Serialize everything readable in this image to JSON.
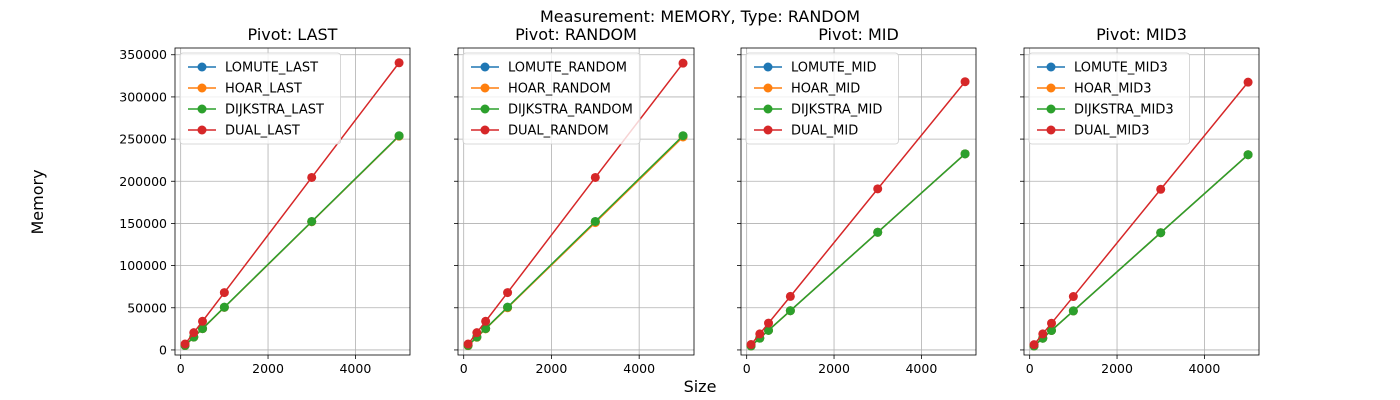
{
  "figure": {
    "suptitle": "Measurement: MEMORY, Type: RANDOM",
    "xlabel": "Size",
    "ylabel": "Memory"
  },
  "chart_data": [
    {
      "type": "line",
      "title": "Pivot: LAST",
      "xlim": [
        -130,
        5250
      ],
      "ylim": [
        -6000,
        358000
      ],
      "xticks": [
        0,
        2000,
        4000
      ],
      "yticks": [
        0,
        50000,
        100000,
        150000,
        200000,
        250000,
        300000,
        350000
      ],
      "grid": true,
      "legend": "upper-left",
      "x": [
        100,
        300,
        500,
        1000,
        3000,
        5000
      ],
      "series": [
        {
          "name": "LOMUTE_LAST",
          "color": "#1f77b4",
          "values": [
            5200,
            15200,
            25200,
            50500,
            152000,
            253500
          ]
        },
        {
          "name": "HOAR_LAST",
          "color": "#ff7f0e",
          "values": [
            5200,
            15200,
            25200,
            50500,
            152000,
            253500
          ]
        },
        {
          "name": "DIJKSTRA_LAST",
          "color": "#2ca02c",
          "values": [
            5300,
            15300,
            25300,
            50700,
            152300,
            254000
          ]
        },
        {
          "name": "DUAL_LAST",
          "color": "#d62728",
          "values": [
            7000,
            20500,
            34000,
            68000,
            204500,
            340500
          ]
        }
      ]
    },
    {
      "type": "line",
      "title": "Pivot: RANDOM",
      "xlim": [
        -130,
        5250
      ],
      "ylim": [
        -6000,
        358000
      ],
      "xticks": [
        0,
        2000,
        4000
      ],
      "yticks": [
        0,
        50000,
        100000,
        150000,
        200000,
        250000,
        300000,
        350000
      ],
      "grid": true,
      "legend": "upper-left",
      "x": [
        100,
        300,
        500,
        1000,
        3000,
        5000
      ],
      "series": [
        {
          "name": "LOMUTE_RANDOM",
          "color": "#1f77b4",
          "values": [
            5200,
            15200,
            25200,
            50500,
            152000,
            253500
          ]
        },
        {
          "name": "HOAR_RANDOM",
          "color": "#ff7f0e",
          "values": [
            5100,
            15000,
            25000,
            50000,
            151000,
            252500
          ]
        },
        {
          "name": "DIJKSTRA_RANDOM",
          "color": "#2ca02c",
          "values": [
            5300,
            15300,
            25300,
            50700,
            152300,
            254000
          ]
        },
        {
          "name": "DUAL_RANDOM",
          "color": "#d62728",
          "values": [
            7000,
            20500,
            34000,
            68000,
            204500,
            340000
          ]
        }
      ]
    },
    {
      "type": "line",
      "title": "Pivot: MID",
      "xlim": [
        -130,
        5250
      ],
      "ylim": [
        -6000,
        358000
      ],
      "xticks": [
        0,
        2000,
        4000
      ],
      "yticks": [
        0,
        50000,
        100000,
        150000,
        200000,
        250000,
        300000,
        350000
      ],
      "grid": true,
      "legend": "upper-left",
      "x": [
        100,
        300,
        500,
        1000,
        3000,
        5000
      ],
      "series": [
        {
          "name": "LOMUTE_MID",
          "color": "#1f77b4",
          "values": [
            4700,
            14000,
            23200,
            46500,
            139500,
            232500
          ]
        },
        {
          "name": "HOAR_MID",
          "color": "#ff7f0e",
          "values": [
            4700,
            14000,
            23200,
            46500,
            139500,
            232500
          ]
        },
        {
          "name": "DIJKSTRA_MID",
          "color": "#2ca02c",
          "values": [
            4700,
            14000,
            23200,
            46500,
            139500,
            232500
          ]
        },
        {
          "name": "DUAL_MID",
          "color": "#d62728",
          "values": [
            6400,
            19000,
            31800,
            63500,
            191000,
            318000
          ]
        }
      ]
    },
    {
      "type": "line",
      "title": "Pivot: MID3",
      "xlim": [
        -130,
        5250
      ],
      "ylim": [
        -6000,
        358000
      ],
      "xticks": [
        0,
        2000,
        4000
      ],
      "yticks": [
        0,
        50000,
        100000,
        150000,
        200000,
        250000,
        300000,
        350000
      ],
      "grid": true,
      "legend": "upper-left",
      "x": [
        100,
        300,
        500,
        1000,
        3000,
        5000
      ],
      "series": [
        {
          "name": "LOMUTE_MID3",
          "color": "#1f77b4",
          "values": [
            4700,
            13900,
            23100,
            46300,
            139000,
            231500
          ]
        },
        {
          "name": "HOAR_MID3",
          "color": "#ff7f0e",
          "values": [
            4700,
            13900,
            23100,
            46300,
            139000,
            231500
          ]
        },
        {
          "name": "DIJKSTRA_MID3",
          "color": "#2ca02c",
          "values": [
            4700,
            13900,
            23100,
            46300,
            139000,
            231500
          ]
        },
        {
          "name": "DUAL_MID3",
          "color": "#d62728",
          "values": [
            6300,
            19000,
            31700,
            63300,
            190500,
            317500
          ]
        }
      ]
    }
  ]
}
